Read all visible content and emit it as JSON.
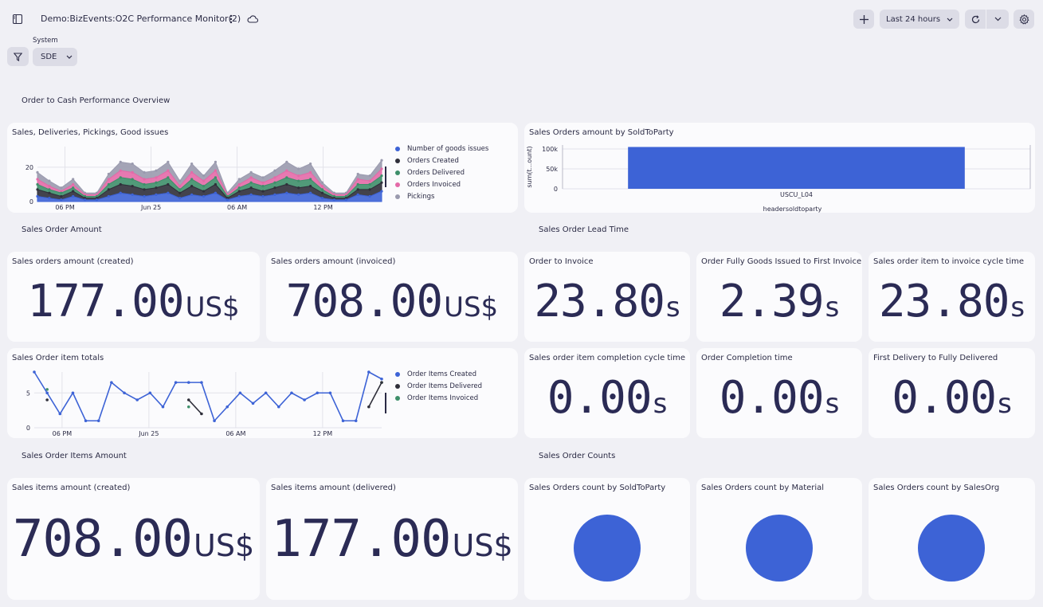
{
  "header": {
    "title": "Demo:BizEvents:O2C Performance Monitor(2)",
    "timeframe": "Last 24 hours",
    "filter_label": "System",
    "filter_value": "SDE"
  },
  "sections": {
    "overview": "Order to Cash Performance Overview",
    "sales_order_amount": "Sales Order Amount",
    "sales_order_lead_time": "Sales Order Lead Time",
    "sales_order_items_amount": "Sales Order Items Amount",
    "sales_order_counts": "Sales Order Counts"
  },
  "tiles": {
    "stacked": {
      "title": "Sales, Deliveries, Pickings, Good issues"
    },
    "bar": {
      "title": "Sales Orders amount by SoldToParty"
    },
    "items_line": {
      "title": "Sales Order item totals"
    },
    "amount_created": {
      "title": "Sales orders amount (created)",
      "value": "177.00",
      "unit": "US$"
    },
    "amount_invoiced": {
      "title": "Sales orders amount (invoiced)",
      "value": "708.00",
      "unit": "US$"
    },
    "order_to_invoice": {
      "title": "Order to Invoice",
      "value": "23.80",
      "unit": "s"
    },
    "fully_goods_issued": {
      "title": "Order Fully Goods Issued to First Invoice",
      "value": "2.39",
      "unit": "s"
    },
    "item_to_invoice": {
      "title": "Sales order item to invoice cycle time",
      "value": "23.80",
      "unit": "s"
    },
    "item_completion": {
      "title": "Sales order item completion cycle time",
      "value": "0.00",
      "unit": "s"
    },
    "order_completion": {
      "title": "Order Completion time",
      "value": "0.00",
      "unit": "s"
    },
    "first_delivery": {
      "title": "First Delivery to Fully Delivered",
      "value": "0.00",
      "unit": "s"
    },
    "items_created": {
      "title": "Sales items amount (created)",
      "value": "708.00",
      "unit": "US$"
    },
    "items_delivered": {
      "title": "Sales items amount (delivered)",
      "value": "177.00",
      "unit": "US$"
    },
    "count_soldto": {
      "title": "Sales Orders count by SoldToParty"
    },
    "count_material": {
      "title": "Sales Orders count by Material"
    },
    "count_salesorg": {
      "title": "Sales Orders count by SalesOrg"
    }
  },
  "colors": {
    "blue": "#3d63d6",
    "black": "#2f2f3a",
    "green": "#3e8f6a",
    "pink": "#e46aa8",
    "grey": "#9a9aae"
  },
  "chart_data": [
    {
      "type": "area",
      "x_ticks": [
        "06 PM",
        "Jun 25",
        "06 AM",
        "12 PM"
      ],
      "y_ticks": [
        "0",
        "20"
      ],
      "ylim": [
        0,
        32
      ],
      "series": [
        {
          "name": "Number of goods issues",
          "values": [
            3,
            2,
            1,
            3,
            1,
            1,
            3,
            5,
            4,
            3,
            4,
            5,
            2,
            4,
            3,
            5,
            1,
            3,
            4,
            3,
            4,
            5,
            4,
            5,
            2,
            1,
            1,
            4,
            3,
            6
          ]
        },
        {
          "name": "Orders Created",
          "values": [
            4,
            3,
            2,
            3,
            1,
            1,
            4,
            5,
            5,
            4,
            4,
            5,
            3,
            5,
            3,
            5,
            1,
            3,
            4,
            3,
            4,
            5,
            4,
            4,
            3,
            1,
            1,
            3,
            4,
            5
          ]
        },
        {
          "name": "Orders Delivered",
          "values": [
            3,
            2,
            2,
            2,
            1,
            1,
            3,
            4,
            4,
            3,
            3,
            4,
            2,
            4,
            3,
            4,
            1,
            2,
            3,
            3,
            3,
            4,
            4,
            4,
            2,
            1,
            1,
            3,
            3,
            4
          ]
        },
        {
          "name": "Orders Invoiced",
          "values": [
            3,
            2,
            1,
            2,
            1,
            1,
            3,
            4,
            4,
            3,
            3,
            4,
            2,
            4,
            3,
            4,
            1,
            2,
            3,
            2,
            3,
            4,
            3,
            4,
            2,
            1,
            1,
            3,
            2,
            4
          ]
        },
        {
          "name": "Pickings",
          "values": [
            4,
            3,
            2,
            3,
            1,
            1,
            3,
            5,
            5,
            4,
            4,
            5,
            3,
            5,
            3,
            5,
            1,
            3,
            3,
            3,
            4,
            5,
            4,
            5,
            2,
            1,
            1,
            3,
            3,
            5
          ]
        }
      ]
    },
    {
      "type": "bar",
      "categories": [
        "USCU_L04"
      ],
      "values": [
        105000
      ],
      "xlabel": "headersoldtoparty",
      "ylabel": "sum(t...ount)",
      "y_ticks": [
        "0",
        "50k",
        "100k"
      ],
      "ylim": [
        0,
        110000
      ]
    },
    {
      "type": "line",
      "x_ticks": [
        "06 PM",
        "Jun 25",
        "06 AM",
        "12 PM"
      ],
      "y_ticks": [
        "0",
        "5"
      ],
      "ylim": [
        0,
        8
      ],
      "series": [
        {
          "name": "Order Items Created",
          "values": [
            8,
            5,
            2,
            5,
            1,
            1,
            6.5,
            5,
            4,
            5,
            3,
            6.5,
            6.5,
            6.5,
            1,
            3,
            5,
            3.5,
            5,
            3,
            5,
            4,
            5,
            5,
            1,
            1,
            8,
            7
          ]
        },
        {
          "name": "Order Items Delivered",
          "values": [
            null,
            4,
            null,
            null,
            null,
            null,
            null,
            null,
            null,
            null,
            null,
            null,
            4,
            2,
            null,
            null,
            null,
            null,
            null,
            null,
            null,
            null,
            null,
            null,
            null,
            null,
            3,
            6.5
          ]
        },
        {
          "name": "Order Items Invoiced",
          "values": [
            null,
            5.5,
            null,
            null,
            null,
            null,
            null,
            null,
            null,
            null,
            null,
            null,
            3,
            null,
            null,
            null,
            null,
            null,
            null,
            null,
            null,
            null,
            null,
            null,
            null,
            null,
            null,
            6.5
          ]
        }
      ]
    },
    {
      "type": "pie",
      "title": "Sales Orders count by SoldToParty",
      "values": [
        1
      ]
    },
    {
      "type": "pie",
      "title": "Sales Orders count by Material",
      "values": [
        1
      ]
    },
    {
      "type": "pie",
      "title": "Sales Orders count by SalesOrg",
      "values": [
        1
      ]
    }
  ]
}
